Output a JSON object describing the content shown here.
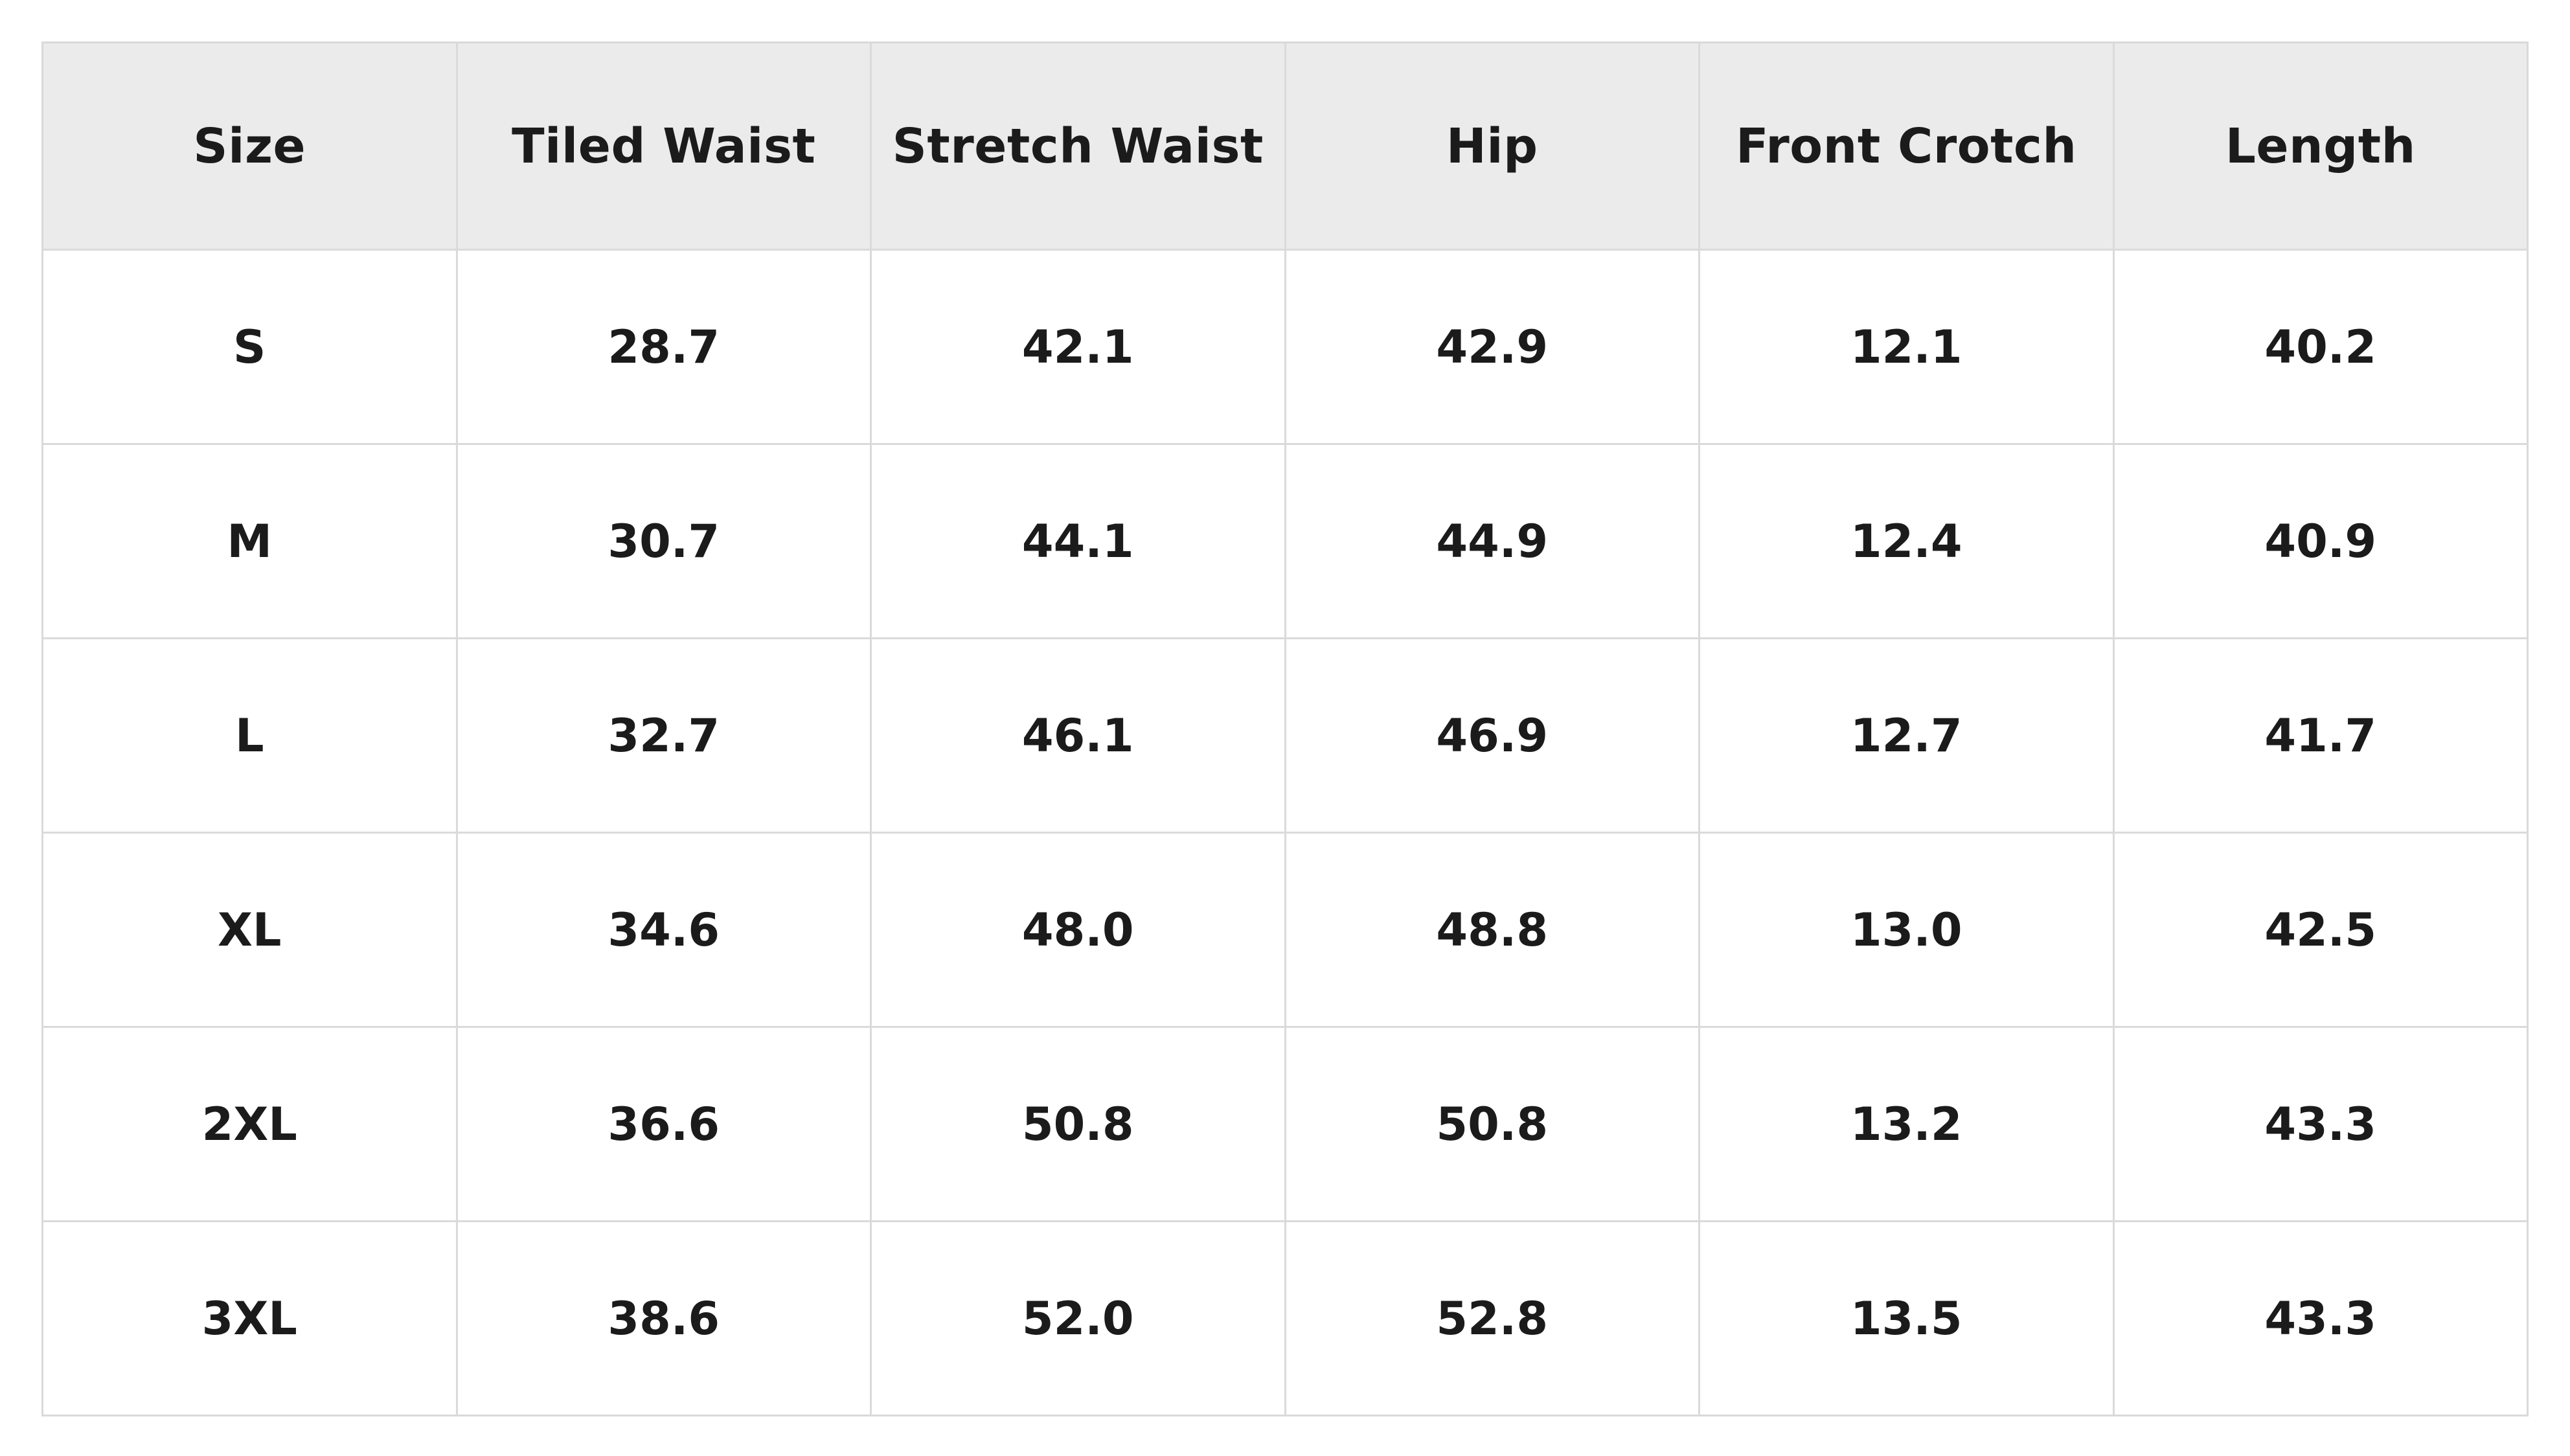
{
  "table": {
    "headers": [
      "Size",
      "Tiled Waist",
      "Stretch Waist",
      "Hip",
      "Front Crotch",
      "Length"
    ],
    "rows": [
      [
        "S",
        "28.7",
        "42.1",
        "42.9",
        "12.1",
        "40.2"
      ],
      [
        "M",
        "30.7",
        "44.1",
        "44.9",
        "12.4",
        "40.9"
      ],
      [
        "L",
        "32.7",
        "46.1",
        "46.9",
        "12.7",
        "41.7"
      ],
      [
        "XL",
        "34.6",
        "48.0",
        "48.8",
        "13.0",
        "42.5"
      ],
      [
        "2XL",
        "36.6",
        "50.8",
        "50.8",
        "13.2",
        "43.3"
      ],
      [
        "3XL",
        "38.6",
        "52.0",
        "52.8",
        "13.5",
        "43.3"
      ]
    ]
  },
  "colors": {
    "header_background": "#ebebeb",
    "border": "#dadada",
    "text": "#1b1b1b",
    "background": "#ffffff"
  }
}
